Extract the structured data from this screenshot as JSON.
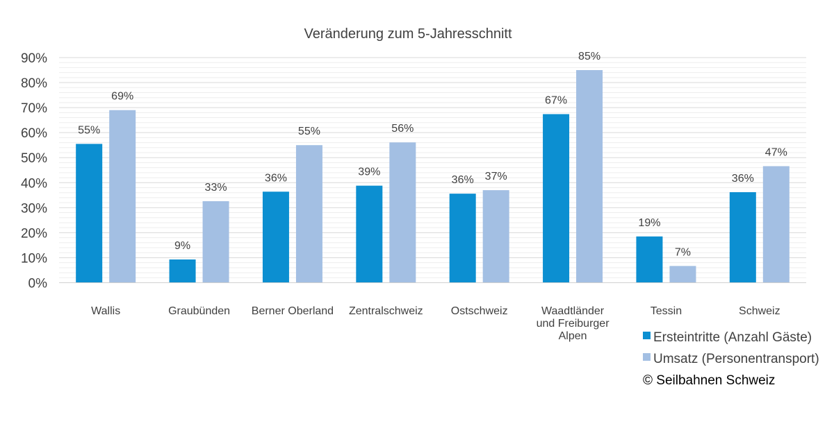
{
  "chart_data": {
    "type": "bar",
    "title": "Veränderung zum 5-Jahresschnitt",
    "categories": [
      [
        "Wallis"
      ],
      [
        "Graubünden"
      ],
      [
        "Berner Oberland"
      ],
      [
        "Zentralschweiz"
      ],
      [
        "Ostschweiz"
      ],
      [
        "Waadtländer",
        "und Freiburger",
        "Alpen"
      ],
      [
        "Tessin"
      ],
      [
        "Schweiz"
      ]
    ],
    "series": [
      {
        "name": "Ersteintritte (Anzahl Gäste)",
        "color": "#0c8fd1",
        "values": [
          55.5,
          9.3,
          36.4,
          38.8,
          35.6,
          67.4,
          18.5,
          36.2
        ],
        "labels": [
          "55%",
          "9%",
          "36%",
          "39%",
          "36%",
          "67%",
          "19%",
          "36%"
        ]
      },
      {
        "name": "Umsatz (Personentransport)",
        "color": "#a3bfe3",
        "values": [
          69.0,
          32.6,
          55.0,
          56.1,
          37.0,
          85.0,
          6.7,
          46.6
        ],
        "labels": [
          "69%",
          "33%",
          "55%",
          "56%",
          "37%",
          "85%",
          "7%",
          "47%"
        ]
      }
    ],
    "y_ticks": [
      "0%",
      "10%",
      "20%",
      "30%",
      "40%",
      "50%",
      "60%",
      "70%",
      "80%",
      "90%"
    ],
    "ylim": [
      0,
      90
    ],
    "xlabel": "",
    "ylabel": "",
    "grid": true,
    "legend_position": "bottom-right"
  },
  "copyright": "© Seilbahnen Schweiz"
}
